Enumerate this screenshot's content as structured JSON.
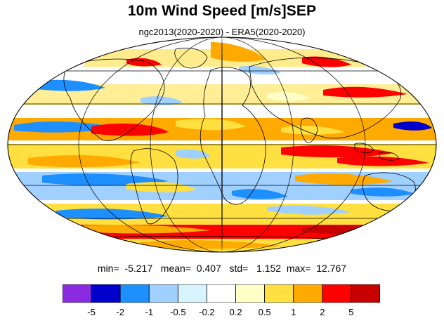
{
  "title": "10m Wind Speed [m/s]SEP",
  "subtitle": "ngc2013(2020-2020) - ERA5(2020-2020)",
  "stats": {
    "min_label": "min=",
    "min": "-5.217",
    "mean_label": "mean=",
    "mean": "0.407",
    "std_label": "std=",
    "std": "1.152",
    "max_label": "max=",
    "max": "12.767"
  },
  "colorbar": {
    "colors": [
      "#8a2be2",
      "#0000cd",
      "#1e8fff",
      "#a0d0ff",
      "#d8f4ff",
      "#ffffff",
      "#ffffc8",
      "#ffe040",
      "#ffaa00",
      "#ff0000",
      "#c80000"
    ],
    "labels": [
      "-5",
      "-2",
      "-1",
      "-0.5",
      "-0.2",
      "0.2",
      "0.5",
      "1",
      "2",
      "5"
    ]
  },
  "map": {
    "projection": "Mollweide",
    "background_color": "#ffffff",
    "grid": true
  }
}
